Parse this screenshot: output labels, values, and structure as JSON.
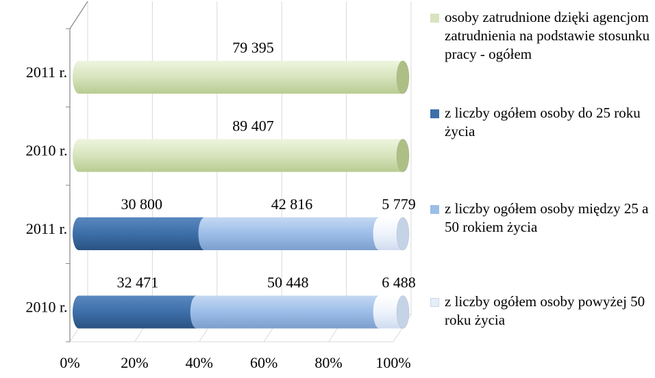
{
  "chart_data": {
    "type": "bar",
    "orientation": "horizontal",
    "stacked": "percent",
    "categories": [
      "2011 r.",
      "2010 r.",
      "2011 r.",
      "2010 r."
    ],
    "series": [
      {
        "name": "osoby zatrudnione dzięki agencjom zatrudnienia na podstawie stosunku pracy - ogółem",
        "color": "#d7e4bd",
        "values": [
          79395,
          89407,
          null,
          null
        ],
        "labels": [
          "79 395",
          "89 407",
          "",
          ""
        ]
      },
      {
        "name": "z liczby ogółem osoby do 25 roku życia",
        "color": "#3d6fa8",
        "values": [
          null,
          null,
          30800,
          32471
        ],
        "labels": [
          "",
          "",
          "30 800",
          "32 471"
        ]
      },
      {
        "name": "z liczby ogółem osoby między 25 a 50 rokiem życia",
        "color": "#9cbde8",
        "values": [
          null,
          null,
          42816,
          50448
        ],
        "labels": [
          "",
          "",
          "42 816",
          "50 448"
        ]
      },
      {
        "name": "z liczby ogółem osoby powyżej 50 roku życia",
        "color": "#e6eef9",
        "values": [
          null,
          null,
          5779,
          6488
        ],
        "labels": [
          "",
          "",
          "5 779",
          "6 488"
        ]
      }
    ],
    "x_ticks": [
      "0%",
      "20%",
      "40%",
      "60%",
      "80%",
      "100%"
    ],
    "xlim": [
      0,
      100
    ],
    "grid": true,
    "legend_position": "right"
  }
}
